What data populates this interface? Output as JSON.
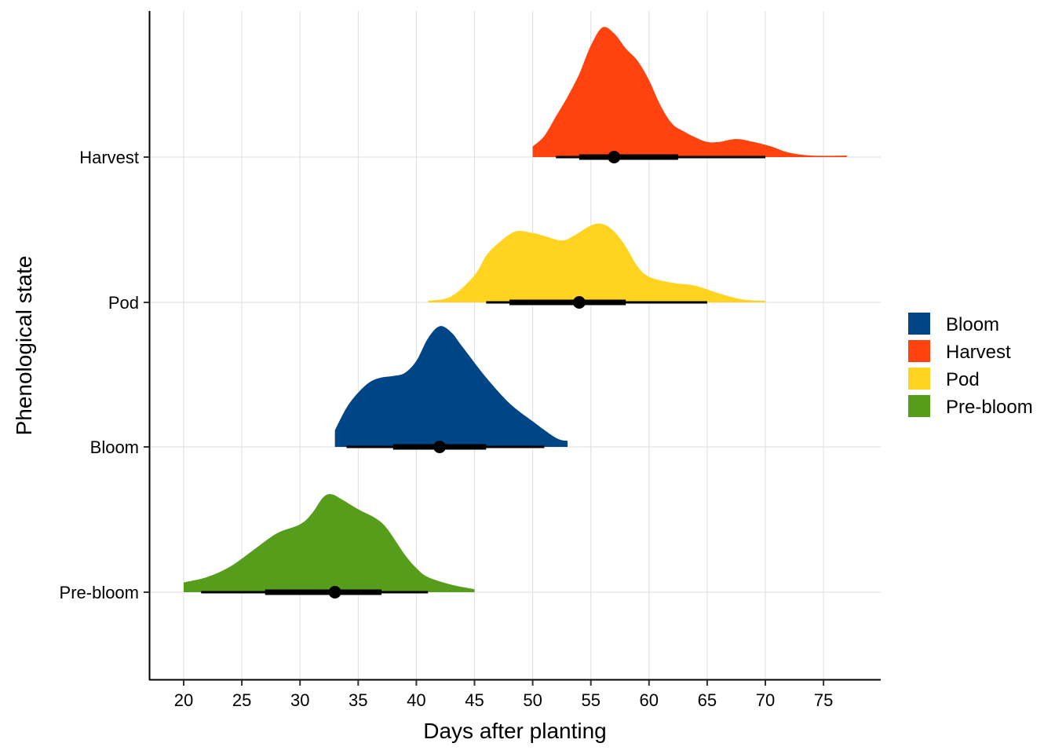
{
  "chart_data": {
    "type": "density-ridge",
    "title": "",
    "xlabel": "Days after planting",
    "ylabel": "Phenological state",
    "xlim": [
      17,
      80
    ],
    "x_ticks": [
      20,
      25,
      30,
      35,
      40,
      45,
      50,
      55,
      60,
      65,
      70,
      75
    ],
    "categories": [
      "Pre-bloom",
      "Bloom",
      "Pod",
      "Harvest"
    ],
    "grid": true,
    "legend_position": "right",
    "legend": [
      {
        "name": "Bloom",
        "color": "#004586"
      },
      {
        "name": "Harvest",
        "color": "#FF420E"
      },
      {
        "name": "Pod",
        "color": "#FFD320"
      },
      {
        "name": "Pre-bloom",
        "color": "#579D1C"
      }
    ],
    "series": [
      {
        "name": "Pre-bloom",
        "color": "#579D1C",
        "density": [
          [
            20,
            0.065
          ],
          [
            22,
            0.1
          ],
          [
            24,
            0.17
          ],
          [
            26,
            0.28
          ],
          [
            28,
            0.39
          ],
          [
            30,
            0.45
          ],
          [
            31,
            0.52
          ],
          [
            32,
            0.63
          ],
          [
            32.7,
            0.65
          ],
          [
            33.5,
            0.62
          ],
          [
            35,
            0.55
          ],
          [
            36.5,
            0.49
          ],
          [
            37.5,
            0.42
          ],
          [
            39,
            0.25
          ],
          [
            40,
            0.16
          ],
          [
            41,
            0.1
          ],
          [
            43,
            0.05
          ],
          [
            45,
            0.02
          ]
        ],
        "point": 33,
        "thick_interval": [
          27,
          37
        ],
        "thin_interval": [
          21.5,
          41
        ]
      },
      {
        "name": "Bloom",
        "color": "#004586",
        "density": [
          [
            33,
            0.11
          ],
          [
            34,
            0.26
          ],
          [
            35,
            0.36
          ],
          [
            36,
            0.43
          ],
          [
            37,
            0.46
          ],
          [
            38,
            0.47
          ],
          [
            39,
            0.49
          ],
          [
            40,
            0.57
          ],
          [
            41,
            0.72
          ],
          [
            42,
            0.8
          ],
          [
            43,
            0.76
          ],
          [
            44,
            0.66
          ],
          [
            46,
            0.46
          ],
          [
            48,
            0.29
          ],
          [
            50,
            0.17
          ],
          [
            52,
            0.06
          ],
          [
            53,
            0.04
          ]
        ],
        "point": 42,
        "thick_interval": [
          38,
          46
        ],
        "thin_interval": [
          34,
          51
        ]
      },
      {
        "name": "Pod",
        "color": "#FFD320",
        "density": [
          [
            41,
            0.01
          ],
          [
            43,
            0.04
          ],
          [
            45,
            0.18
          ],
          [
            46,
            0.31
          ],
          [
            47,
            0.39
          ],
          [
            48.5,
            0.47
          ],
          [
            50,
            0.46
          ],
          [
            51,
            0.44
          ],
          [
            52.5,
            0.41
          ],
          [
            53.5,
            0.44
          ],
          [
            55,
            0.51
          ],
          [
            56,
            0.52
          ],
          [
            57,
            0.47
          ],
          [
            58,
            0.37
          ],
          [
            59,
            0.24
          ],
          [
            60,
            0.17
          ],
          [
            62,
            0.13
          ],
          [
            64,
            0.11
          ],
          [
            66,
            0.06
          ],
          [
            68,
            0.02
          ],
          [
            70,
            0.01
          ]
        ],
        "point": 54,
        "thick_interval": [
          48,
          58
        ],
        "thin_interval": [
          46,
          65
        ]
      },
      {
        "name": "Harvest",
        "color": "#FF420E",
        "density": [
          [
            50,
            0.07
          ],
          [
            51,
            0.14
          ],
          [
            52,
            0.27
          ],
          [
            53,
            0.4
          ],
          [
            54,
            0.55
          ],
          [
            55,
            0.74
          ],
          [
            56,
            0.86
          ],
          [
            57,
            0.82
          ],
          [
            58,
            0.72
          ],
          [
            59,
            0.64
          ],
          [
            60,
            0.51
          ],
          [
            61,
            0.34
          ],
          [
            62,
            0.22
          ],
          [
            63,
            0.17
          ],
          [
            64,
            0.13
          ],
          [
            65,
            0.1
          ],
          [
            66,
            0.1
          ],
          [
            67.5,
            0.12
          ],
          [
            69,
            0.1
          ],
          [
            70.5,
            0.07
          ],
          [
            72,
            0.03
          ],
          [
            74,
            0.01
          ],
          [
            77,
            0.01
          ]
        ],
        "point": 57,
        "thick_interval": [
          54,
          62.5
        ],
        "thin_interval": [
          52,
          70
        ]
      }
    ]
  }
}
